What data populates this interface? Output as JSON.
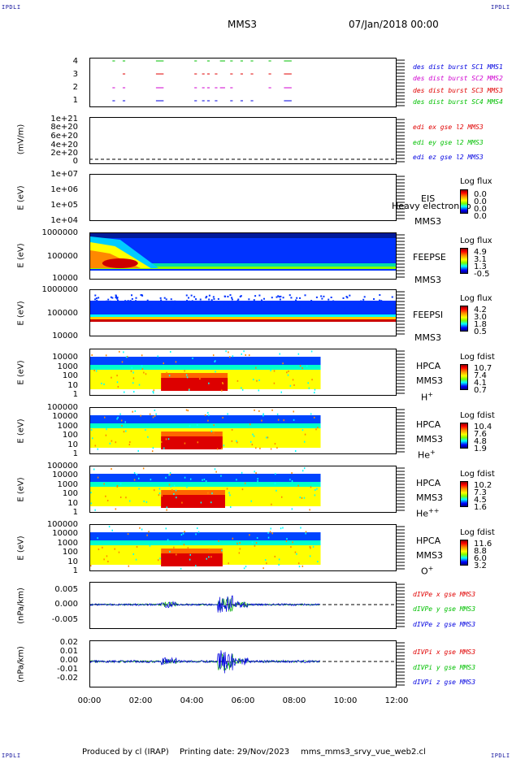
{
  "corners": {
    "tl": "IPDLI",
    "tr": "IPDLI",
    "bl": "IPDLI",
    "br": "IPDLI"
  },
  "header": {
    "spacecraft": "MMS3",
    "date": "07/Jan/2018 00:00"
  },
  "footer": {
    "produced": "Produced by cl (IRAP)",
    "printing": "Printing date: 29/Nov/2023",
    "file": "mms_mms3_srvy_vue_web2.cl"
  },
  "x_ticks": [
    "00:00",
    "02:00",
    "04:00",
    "06:00",
    "08:00",
    "10:00",
    "12:00"
  ],
  "colors": {
    "black": "#000000",
    "red": "#e00000",
    "magenta": "#d000d0",
    "green": "#00c000",
    "blue": "#0000e0"
  },
  "chart_data": [
    {
      "type": "scatter",
      "name": "burst",
      "y_ticks": [
        "1",
        "2",
        "3",
        "4"
      ],
      "legend": [
        {
          "label": "des dist burst SC1 MMS1",
          "color": "#0000e0"
        },
        {
          "label": "des dist burst SC2 MMS2",
          "color": "#d000d0"
        },
        {
          "label": "des dist burst SC3 MMS3",
          "color": "#e00000"
        },
        {
          "label": "des dist burst SC4 MMS4",
          "color": "#00c000"
        }
      ],
      "segments_hours": [
        [
          0.9,
          1.0
        ],
        [
          1.3,
          1.4
        ],
        [
          2.6,
          2.9
        ],
        [
          4.1,
          4.2
        ],
        [
          4.4,
          4.5
        ],
        [
          4.6,
          4.7
        ],
        [
          4.9,
          5.0
        ],
        [
          5.1,
          5.3
        ],
        [
          5.5,
          5.6
        ],
        [
          5.9,
          6.0
        ],
        [
          6.3,
          6.4
        ],
        [
          7.0,
          7.1
        ],
        [
          7.6,
          7.9
        ]
      ]
    },
    {
      "type": "line",
      "name": "edi",
      "ylabel": "(mV/m)",
      "y_ticks": [
        "0",
        "2e+20",
        "4e+20",
        "6e+20",
        "8e+20",
        "1e+21"
      ],
      "legend": [
        {
          "label": "edi ex gse l2 MMS3",
          "color": "#e00000"
        },
        {
          "label": "edi ey gse l2 MMS3",
          "color": "#00c000"
        },
        {
          "label": "edi ez gse l2 MMS3",
          "color": "#0000e0"
        }
      ]
    },
    {
      "type": "heatmap",
      "name": "eis",
      "ylabel": "E (eV)",
      "y_ticks": [
        "1e+07",
        "1e+06",
        "1e+05",
        "1e+04"
      ],
      "labels": [
        "EIS",
        "MMS3"
      ],
      "overlay_label": "Heavy electron to",
      "cbar_title": "Log flux",
      "cbar_values": [
        "0.0",
        "0.0",
        "0.0",
        "0.0"
      ]
    },
    {
      "type": "heatmap",
      "name": "feepse",
      "ylabel": "E (eV)",
      "y_ticks": [
        "1000000",
        "100000",
        "10000"
      ],
      "labels": [
        "FEEPSE",
        "MMS3"
      ],
      "cbar_title": "Log flux",
      "cbar_values": [
        "4.9",
        "3.1",
        "1.3",
        "-0.5"
      ]
    },
    {
      "type": "heatmap",
      "name": "feepsi",
      "ylabel": "E (eV)",
      "y_ticks": [
        "1000000",
        "100000",
        "10000"
      ],
      "labels": [
        "FEEPSI",
        "MMS3"
      ],
      "cbar_title": "Log flux",
      "cbar_values": [
        "4.2",
        "3.0",
        "1.8",
        "0.5"
      ]
    },
    {
      "type": "heatmap",
      "name": "hpca-h",
      "ylabel": "E (eV)",
      "y_ticks": [
        "10000",
        "1000",
        "100",
        "10",
        "1"
      ],
      "labels": [
        "HPCA",
        "MMS3"
      ],
      "species": "H",
      "species_sup": "+",
      "cbar_title": "Log fdist",
      "cbar_values": [
        "10.7",
        "7.4",
        "4.1",
        "0.7"
      ]
    },
    {
      "type": "heatmap",
      "name": "hpca-he",
      "ylabel": "E (eV)",
      "y_ticks": [
        "100000",
        "10000",
        "1000",
        "100",
        "10",
        "1"
      ],
      "labels": [
        "HPCA",
        "MMS3"
      ],
      "species": "He",
      "species_sup": "+",
      "cbar_title": "Log fdist",
      "cbar_values": [
        "10.4",
        "7.6",
        "4.8",
        "1.9"
      ]
    },
    {
      "type": "heatmap",
      "name": "hpca-he2",
      "ylabel": "E (eV)",
      "y_ticks": [
        "100000",
        "10000",
        "1000",
        "100",
        "10",
        "1"
      ],
      "labels": [
        "HPCA",
        "MMS3"
      ],
      "species": "He",
      "species_sup": "++",
      "cbar_title": "Log fdist",
      "cbar_values": [
        "10.2",
        "7.3",
        "4.5",
        "1.6"
      ]
    },
    {
      "type": "heatmap",
      "name": "hpca-o",
      "ylabel": "E (eV)",
      "y_ticks": [
        "100000",
        "10000",
        "1000",
        "100",
        "10",
        "1"
      ],
      "labels": [
        "HPCA",
        "MMS3"
      ],
      "species": "O",
      "species_sup": "+",
      "cbar_title": "Log fdist",
      "cbar_values": [
        "11.6",
        "8.8",
        "6.0",
        "3.2"
      ]
    },
    {
      "type": "line",
      "name": "divpe",
      "ylabel": "(nPa/km)",
      "y_ticks": [
        "0.005",
        "0.000",
        "-0.005"
      ],
      "legend": [
        {
          "label": "dIVPe x gse MMS3",
          "color": "#e00000"
        },
        {
          "label": "dIVPe y gse MMS3",
          "color": "#00c000"
        },
        {
          "label": "dIVPe z gse MMS3",
          "color": "#0000e0"
        }
      ]
    },
    {
      "type": "line",
      "name": "divpi",
      "ylabel": "(nPa/km)",
      "y_ticks": [
        "0.02",
        "0.01",
        "0.00",
        "-0.01",
        "-0.02"
      ],
      "legend": [
        {
          "label": "dIVPi x gse MMS3",
          "color": "#e00000"
        },
        {
          "label": "dIVPi y gse MMS3",
          "color": "#00c000"
        },
        {
          "label": "dIVPi z gse MMS3",
          "color": "#0000e0"
        }
      ]
    }
  ]
}
